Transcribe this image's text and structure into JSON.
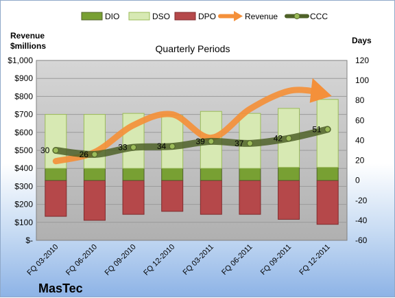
{
  "chart_data": {
    "type": "bar",
    "title": "Quarterly Periods",
    "company": "MasTec",
    "left_axis_label": [
      "Revenue",
      "$millions"
    ],
    "right_axis_label": "Days",
    "categories": [
      "FQ 03-2010",
      "FQ 06-2010",
      "FQ 09-2010",
      "FQ 12-2010",
      "FQ 03-2011",
      "FQ 06-2011",
      "FQ 09-2011",
      "FQ 12-2011"
    ],
    "left_axis": {
      "min": 0,
      "max": 1000,
      "step": 100,
      "tick_labels": [
        "$-",
        "$100",
        "$200",
        "$300",
        "$400",
        "$500",
        "$600",
        "$700",
        "$800",
        "$900",
        "$1,000"
      ]
    },
    "right_axis": {
      "min": -60,
      "max": 120,
      "step": 20,
      "tick_labels": [
        "-60",
        "-40",
        "-20",
        "0",
        "20",
        "40",
        "60",
        "80",
        "100",
        "120"
      ]
    },
    "legend": {
      "placement": "top",
      "items": [
        {
          "name": "DIO",
          "marker": "bar",
          "color": "#78a033"
        },
        {
          "name": "DSO",
          "marker": "bar",
          "color": "#d7e9b3"
        },
        {
          "name": "DPO",
          "marker": "bar",
          "color": "#b5484a"
        },
        {
          "name": "Revenue",
          "marker": "arrow",
          "color": "#f4903a"
        },
        {
          "name": "CCC",
          "marker": "line-dot",
          "color": "#4f6228"
        }
      ]
    },
    "series": [
      {
        "name": "DPO",
        "axis": "days",
        "kind": "bar-below-zero",
        "values": [
          -36,
          -40,
          -34,
          -31,
          -34,
          -34,
          -39,
          -44
        ]
      },
      {
        "name": "DIO",
        "axis": "days",
        "kind": "bar-stack",
        "values": [
          12,
          12,
          12,
          12,
          12,
          12,
          13,
          13
        ]
      },
      {
        "name": "DSO",
        "axis": "days",
        "kind": "bar-stack",
        "values": [
          54,
          54,
          55,
          53,
          57,
          55,
          59,
          68
        ]
      },
      {
        "name": "CCC",
        "axis": "days",
        "kind": "line",
        "values": [
          30,
          26,
          33,
          34,
          39,
          37,
          42,
          51
        ],
        "labels": [
          "30",
          "26",
          "33",
          "34",
          "39",
          "37",
          "42",
          "51"
        ]
      },
      {
        "name": "Revenue",
        "axis": "revenue",
        "kind": "line",
        "values": [
          440,
          490,
          640,
          700,
          570,
          730,
          830,
          810
        ]
      }
    ],
    "grid": true,
    "colors": {
      "plot_bg": "#bfbfbf",
      "dio": "#78a033",
      "dso": "#d7e9b3",
      "dpo": "#b5484a",
      "revenue": "#f4903a",
      "ccc": "#4f6228"
    }
  }
}
